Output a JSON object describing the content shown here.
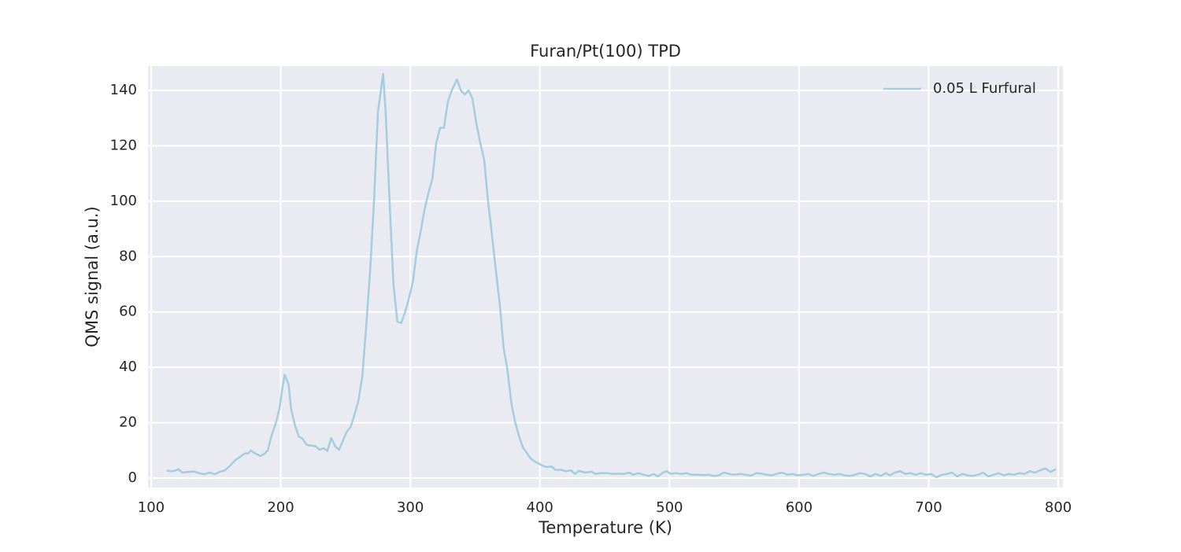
{
  "chart_data": {
    "type": "line",
    "title": "Furan/Pt(100) TPD",
    "x_label": "Temperature (K)",
    "y_label": "QMS signal (a.u.)",
    "x": [
      112,
      115,
      118,
      121,
      124,
      128,
      133,
      137,
      141,
      145,
      149,
      153,
      157,
      161,
      165,
      169,
      172,
      175,
      177,
      180,
      184,
      187,
      190,
      193,
      196,
      199,
      201,
      203,
      206,
      208,
      211,
      214,
      217,
      220,
      223,
      227,
      230,
      233,
      236,
      239,
      242,
      245,
      248,
      251,
      254,
      257,
      260,
      263,
      266,
      269,
      272,
      275,
      279,
      281,
      284,
      287,
      290,
      293,
      296,
      299,
      302,
      305,
      308,
      311,
      314,
      317,
      320,
      323,
      326,
      329,
      332,
      336,
      339,
      342,
      345,
      348,
      351,
      354,
      357,
      360,
      363,
      366,
      369,
      372,
      375,
      378,
      381,
      384,
      387,
      390,
      393,
      396,
      399,
      402,
      405,
      409,
      412,
      416,
      420,
      424,
      427,
      430,
      435,
      440,
      443,
      447,
      452,
      456,
      461,
      465,
      469,
      472,
      476,
      480,
      484,
      488,
      491,
      495,
      498,
      501,
      505,
      509,
      513,
      517,
      522,
      526,
      530,
      534,
      538,
      542,
      546,
      550,
      555,
      559,
      563,
      567,
      571,
      575,
      579,
      583,
      587,
      591,
      595,
      599,
      603,
      607,
      611,
      615,
      619,
      623,
      627,
      631,
      635,
      639,
      643,
      647,
      651,
      655,
      659,
      663,
      667,
      670,
      674,
      678,
      682,
      686,
      690,
      694,
      698,
      702,
      706,
      710,
      714,
      718,
      722,
      726,
      730,
      734,
      738,
      742,
      746,
      750,
      754,
      758,
      762,
      766,
      770,
      774,
      778,
      782,
      786,
      790,
      794,
      798
    ],
    "series": [
      {
        "name": "0.05 L Furfural",
        "color": "#a3cde0",
        "values": [
          2.8,
          2.5,
          2.6,
          3.2,
          2,
          2.2,
          2.4,
          1.8,
          1.4,
          2,
          1.4,
          2.3,
          2.8,
          4.5,
          6.5,
          7.8,
          8.8,
          9,
          10,
          9,
          8,
          8.6,
          10,
          15.5,
          19.5,
          25,
          31.5,
          37.3,
          34,
          25,
          19,
          15,
          14.2,
          12,
          11.8,
          11.5,
          10.2,
          10.8,
          9.8,
          14.5,
          11.5,
          10.2,
          13.5,
          16.8,
          18.5,
          23,
          28,
          37,
          55,
          75,
          100,
          132,
          146,
          132,
          100,
          70,
          56.5,
          56,
          60,
          65,
          71,
          82,
          89,
          97,
          103,
          108,
          121,
          126.5,
          126.5,
          136,
          140,
          144,
          140,
          138.5,
          140,
          137,
          128,
          121,
          115,
          100,
          88,
          75,
          63,
          47,
          39,
          27,
          20,
          15,
          11,
          9,
          7,
          6,
          5.3,
          4.5,
          4,
          4.2,
          3,
          3,
          2.5,
          2.8,
          1.5,
          2.6,
          2,
          2.3,
          1.5,
          1.8,
          1.8,
          1.5,
          1.6,
          1.5,
          2,
          1.2,
          1.8,
          1.2,
          0.8,
          1.5,
          0.6,
          2,
          2.5,
          1.5,
          1.8,
          1.5,
          1.8,
          1.2,
          1.2,
          1.1,
          1.2,
          0.8,
          1,
          2,
          1.5,
          1.2,
          1.5,
          1.2,
          0.9,
          1.8,
          1.6,
          1.2,
          1,
          1.6,
          2,
          1.2,
          1.5,
          1,
          1.2,
          1.5,
          0.8,
          1.5,
          2,
          1.5,
          1.2,
          1.5,
          1,
          0.8,
          1.2,
          1.8,
          1.5,
          0.6,
          1.5,
          0.8,
          1.8,
          1,
          2,
          2.5,
          1.5,
          1.8,
          1.2,
          1.8,
          1.2,
          1.5,
          0.3,
          1.2,
          1.5,
          2,
          0.6,
          1.5,
          1,
          0.8,
          1.2,
          2,
          0.6,
          1.2,
          1.8,
          1,
          1.5,
          1.2,
          1.8,
          1.5,
          2.5,
          2,
          2.8,
          3.5,
          2.2,
          3.2
        ]
      }
    ],
    "xlim": [
      97.6,
      803.6
    ],
    "ylim": [
      -3.4,
      148.8
    ],
    "xticks": [
      100,
      200,
      300,
      400,
      500,
      600,
      700,
      800
    ],
    "yticks": [
      0,
      20,
      40,
      60,
      80,
      100,
      120,
      140
    ],
    "grid": true,
    "legend_position": "upper right"
  }
}
